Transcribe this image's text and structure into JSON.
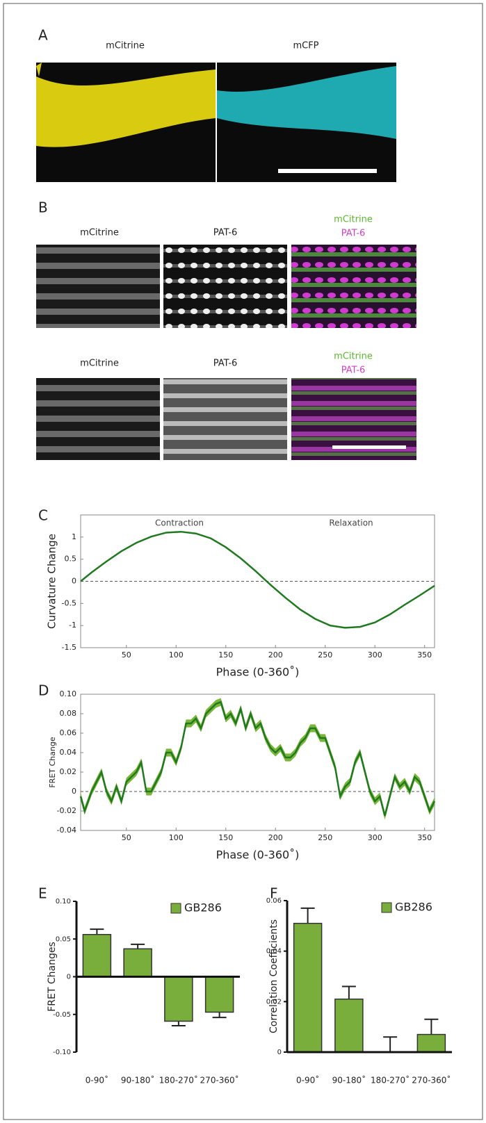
{
  "figure": {
    "panel_a": {
      "label": "A",
      "titles": [
        "mCitrine",
        "mCFP"
      ]
    },
    "panel_b": {
      "label": "B",
      "rows": [
        {
          "titles": [
            "mCitrine",
            "PAT-6"
          ],
          "merge": [
            "mCitrine",
            "PAT-6"
          ]
        },
        {
          "titles": [
            "mCitrine",
            "PAT-6"
          ],
          "merge": [
            "mCitrine",
            "PAT-6"
          ]
        }
      ]
    }
  },
  "chart_data": [
    {
      "type": "line",
      "panel_label": "C",
      "ylabel": "Curvature Change",
      "xlabel": "Phase (0-360˚)",
      "annotations": [
        "Contraction",
        "Relaxation"
      ],
      "x": [
        4,
        15,
        30,
        45,
        60,
        75,
        90,
        105,
        120,
        135,
        150,
        165,
        180,
        195,
        210,
        225,
        240,
        255,
        270,
        285,
        300,
        315,
        330,
        345,
        360
      ],
      "series": [
        {
          "color": "#1f7a1f",
          "values": [
            0,
            0.2,
            0.45,
            0.68,
            0.87,
            1.01,
            1.1,
            1.12,
            1.08,
            0.97,
            0.77,
            0.52,
            0.23,
            -0.08,
            -0.37,
            -0.64,
            -0.85,
            -1.0,
            -1.05,
            -1.03,
            -0.93,
            -0.75,
            -0.53,
            -0.32,
            -0.1
          ]
        }
      ],
      "xlim": [
        4,
        360
      ],
      "ylim": [
        -1.5,
        1.5
      ],
      "xticks": [
        50,
        100,
        150,
        200,
        250,
        300,
        350
      ],
      "yticks": [
        -1.5,
        -1,
        -0.5,
        0,
        0.5,
        1
      ],
      "reference_line": 0
    },
    {
      "type": "line",
      "panel_label": "D",
      "ylabel": "FRET Change",
      "xlabel": "Phase (0-360˚)",
      "x": [
        4,
        8,
        15,
        20,
        25,
        30,
        35,
        40,
        45,
        50,
        55,
        60,
        65,
        70,
        75,
        80,
        85,
        90,
        95,
        100,
        105,
        110,
        115,
        120,
        125,
        130,
        135,
        140,
        145,
        150,
        155,
        160,
        165,
        170,
        175,
        180,
        185,
        190,
        195,
        200,
        205,
        210,
        215,
        220,
        225,
        230,
        235,
        240,
        245,
        250,
        255,
        260,
        265,
        270,
        275,
        280,
        285,
        290,
        295,
        300,
        305,
        310,
        315,
        320,
        325,
        330,
        335,
        340,
        345,
        350,
        355,
        360
      ],
      "series": [
        {
          "color": "#1f7a1f",
          "band_color": "#7bb63a",
          "values": [
            -0.005,
            -0.02,
            0.0,
            0.01,
            0.02,
            0.0,
            -0.01,
            0.005,
            -0.01,
            0.01,
            0.015,
            0.02,
            0.03,
            0.0,
            0.0,
            0.01,
            0.02,
            0.04,
            0.04,
            0.03,
            0.045,
            0.07,
            0.07,
            0.075,
            0.065,
            0.08,
            0.085,
            0.09,
            0.092,
            0.075,
            0.08,
            0.07,
            0.085,
            0.065,
            0.08,
            0.065,
            0.07,
            0.055,
            0.045,
            0.04,
            0.045,
            0.035,
            0.035,
            0.04,
            0.05,
            0.055,
            0.065,
            0.065,
            0.055,
            0.055,
            0.04,
            0.025,
            -0.005,
            0.005,
            0.01,
            0.03,
            0.04,
            0.02,
            0.0,
            -0.01,
            -0.005,
            -0.025,
            -0.005,
            0.015,
            0.005,
            0.01,
            0.0,
            0.015,
            0.01,
            -0.005,
            -0.02,
            -0.01
          ],
          "errors": [
            0.004,
            0.004,
            0.004,
            0.004,
            0.004,
            0.004,
            0.004,
            0.004,
            0.004,
            0.004,
            0.004,
            0.004,
            0.004,
            0.004,
            0.004,
            0.004,
            0.004,
            0.004,
            0.004,
            0.004,
            0.004,
            0.004,
            0.004,
            0.004,
            0.004,
            0.004,
            0.004,
            0.004,
            0.004,
            0.004,
            0.004,
            0.004,
            0.004,
            0.004,
            0.004,
            0.004,
            0.004,
            0.004,
            0.004,
            0.004,
            0.004,
            0.004,
            0.004,
            0.004,
            0.004,
            0.004,
            0.004,
            0.004,
            0.004,
            0.004,
            0.004,
            0.004,
            0.004,
            0.004,
            0.004,
            0.004,
            0.004,
            0.004,
            0.004,
            0.004,
            0.004,
            0.004,
            0.004,
            0.004,
            0.004,
            0.004,
            0.004,
            0.004,
            0.004,
            0.004,
            0.004,
            0.004
          ]
        }
      ],
      "xlim": [
        4,
        360
      ],
      "ylim": [
        -0.04,
        0.1
      ],
      "xticks": [
        50,
        100,
        150,
        200,
        250,
        300,
        350
      ],
      "yticks": [
        -0.04,
        -0.02,
        0,
        0.02,
        0.04,
        0.06,
        0.08,
        {
          "value": 0.1,
          "label": "0.10"
        }
      ],
      "reference_line": 0
    },
    {
      "type": "bar",
      "panel_label": "E",
      "ylabel": "FRET Changes",
      "categories": [
        "0-90˚",
        "90-180˚",
        "180-270˚",
        "270-360˚"
      ],
      "series": [
        {
          "name": "GB286",
          "color": "#7aae3c",
          "values": [
            0.056,
            0.037,
            -0.059,
            -0.047
          ],
          "errors": [
            0.007,
            0.006,
            0.006,
            0.007
          ]
        }
      ],
      "ylim": [
        -0.1,
        0.1
      ],
      "yticks": [
        {
          "value": -0.1,
          "label": "-0.10"
        },
        -0.05,
        0,
        0.05,
        {
          "value": 0.1,
          "label": "0.10"
        }
      ]
    },
    {
      "type": "bar",
      "panel_label": "F",
      "ylabel": "Correlation Coefficients",
      "categories": [
        "0-90˚",
        "90-180˚",
        "180-270˚",
        "270-360˚"
      ],
      "series": [
        {
          "name": "GB286",
          "color": "#7aae3c",
          "values": [
            0.051,
            0.021,
            0.0,
            0.007
          ],
          "errors": [
            0.006,
            0.005,
            0.006,
            0.006
          ]
        }
      ],
      "ylim": [
        0,
        0.06
      ],
      "yticks": [
        0,
        0.02,
        0.04,
        0.06
      ]
    }
  ]
}
